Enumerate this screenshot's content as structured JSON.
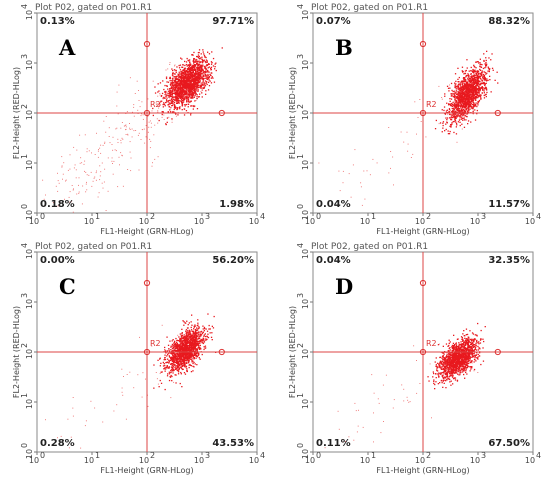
{
  "chart_data": [
    {
      "type": "scatter",
      "panel_letter": "A",
      "title": "Plot P02, gated on P01.R1",
      "xlabel": "FL1-Height (GRN-HLog)",
      "ylabel": "FL2-Height (RED-HLog)",
      "scale": "log",
      "xlim": [
        1,
        10000
      ],
      "ylim": [
        1,
        10000
      ],
      "x_ticks": [
        "10",
        "10",
        "10",
        "10",
        "10"
      ],
      "x_tick_exponents": [
        "0",
        "1",
        "2",
        "3",
        "4"
      ],
      "y_ticks": [
        "10",
        "10",
        "10",
        "10",
        "10"
      ],
      "y_tick_exponents": [
        "0",
        "1",
        "2",
        "3",
        "4"
      ],
      "gate_label": "R2",
      "quadrant_gate": [
        100,
        100
      ],
      "quadrants": {
        "upper_left": "0.13%",
        "upper_right": "97.71%",
        "lower_left": "0.18%",
        "lower_right": "1.98%"
      },
      "cluster": {
        "center_x": 550,
        "center_y": 400,
        "spread_x": 0.2,
        "spread_y": 0.24,
        "corr": 0.55,
        "points": 1700
      },
      "debris_points": 260,
      "point_color": "#e8191f"
    },
    {
      "type": "scatter",
      "panel_letter": "B",
      "title": "Plot P02, gated on P01.R1",
      "xlabel": "FL1-Height (GRN-HLog)",
      "ylabel": "FL2-Height (RED-HLog)",
      "scale": "log",
      "xlim": [
        1,
        10000
      ],
      "ylim": [
        1,
        10000
      ],
      "x_ticks": [
        "10",
        "10",
        "10",
        "10",
        "10"
      ],
      "x_tick_exponents": [
        "0",
        "1",
        "2",
        "3",
        "4"
      ],
      "y_ticks": [
        "10",
        "10",
        "10",
        "10",
        "10"
      ],
      "y_tick_exponents": [
        "0",
        "1",
        "2",
        "3",
        "4"
      ],
      "gate_label": "R2",
      "quadrant_gate": [
        100,
        100
      ],
      "quadrants": {
        "upper_left": "0.07%",
        "upper_right": "88.32%",
        "lower_left": "0.04%",
        "lower_right": "11.57%"
      },
      "cluster": {
        "center_x": 650,
        "center_y": 240,
        "spread_x": 0.17,
        "spread_y": 0.27,
        "corr": 0.6,
        "points": 1400
      },
      "debris_points": 60,
      "point_color": "#e8191f"
    },
    {
      "type": "scatter",
      "panel_letter": "C",
      "title": "Plot P02, gated on P01.R1",
      "xlabel": "FL1-Height (GRN-HLog)",
      "ylabel": "FL2-Height (RED-HLog)",
      "scale": "log",
      "xlim": [
        1,
        10000
      ],
      "ylim": [
        1,
        10000
      ],
      "x_ticks": [
        "10",
        "10",
        "10",
        "10",
        "10"
      ],
      "x_tick_exponents": [
        "0",
        "1",
        "2",
        "3",
        "4"
      ],
      "y_ticks": [
        "10",
        "10",
        "10",
        "10",
        "10"
      ],
      "y_tick_exponents": [
        "0",
        "1",
        "2",
        "3",
        "4"
      ],
      "gate_label": "R2",
      "quadrant_gate": [
        100,
        100
      ],
      "quadrants": {
        "upper_left": "0.00%",
        "upper_right": "56.20%",
        "lower_left": "0.28%",
        "lower_right": "43.53%"
      },
      "cluster": {
        "center_x": 500,
        "center_y": 110,
        "spread_x": 0.17,
        "spread_y": 0.22,
        "corr": 0.55,
        "points": 1400
      },
      "debris_points": 50,
      "point_color": "#e8191f"
    },
    {
      "type": "scatter",
      "panel_letter": "D",
      "title": "Plot P02, gated on P01.R1",
      "xlabel": "FL1-Height (GRN-HLog)",
      "ylabel": "FL2-Height (RED-HLog)",
      "scale": "log",
      "xlim": [
        1,
        10000
      ],
      "ylim": [
        1,
        10000
      ],
      "x_ticks": [
        "10",
        "10",
        "10",
        "10",
        "10"
      ],
      "x_tick_exponents": [
        "0",
        "1",
        "2",
        "3",
        "4"
      ],
      "y_ticks": [
        "10",
        "10",
        "10",
        "10",
        "10"
      ],
      "y_tick_exponents": [
        "0",
        "1",
        "2",
        "3",
        "4"
      ],
      "gate_label": "R2",
      "quadrant_gate": [
        100,
        100
      ],
      "quadrants": {
        "upper_left": "0.04%",
        "upper_right": "32.35%",
        "lower_left": "0.11%",
        "lower_right": "67.50%"
      },
      "cluster": {
        "center_x": 430,
        "center_y": 75,
        "spread_x": 0.17,
        "spread_y": 0.2,
        "corr": 0.55,
        "points": 1400
      },
      "debris_points": 50,
      "point_color": "#e8191f"
    }
  ]
}
